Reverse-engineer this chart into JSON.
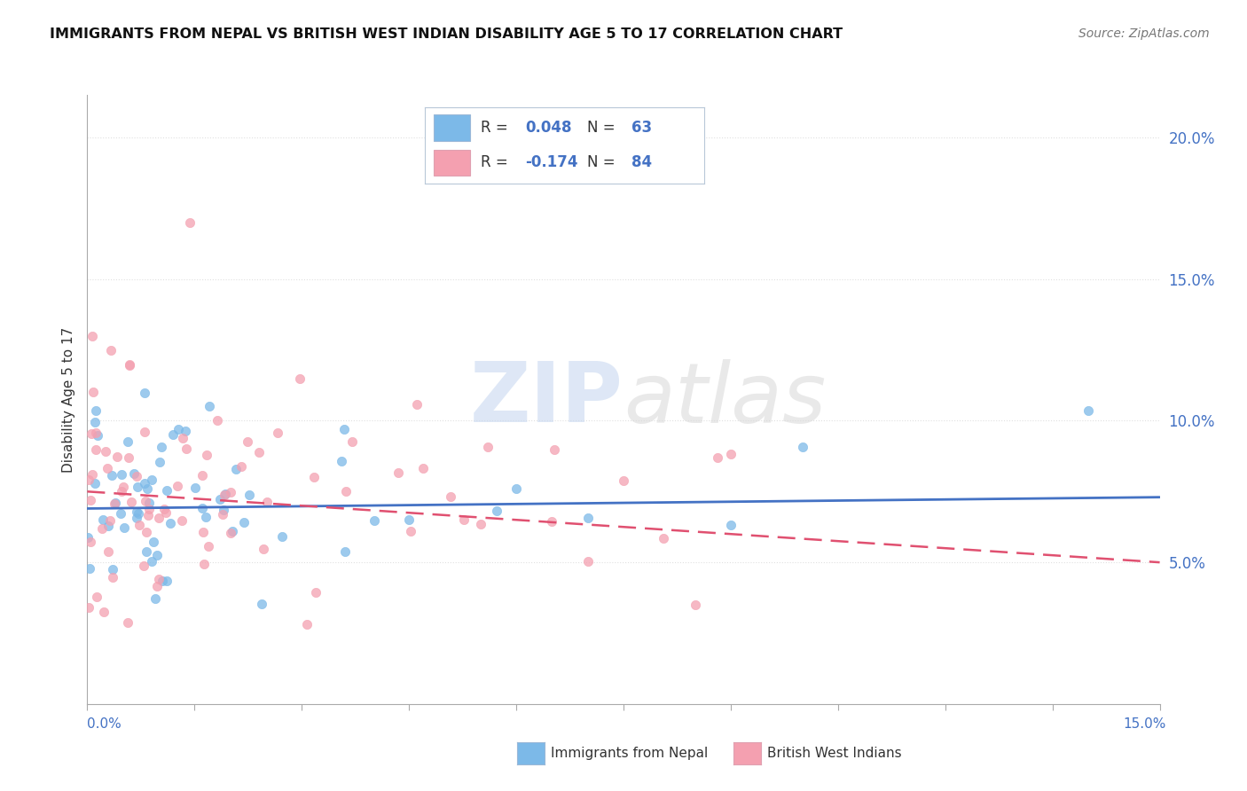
{
  "title": "IMMIGRANTS FROM NEPAL VS BRITISH WEST INDIAN DISABILITY AGE 5 TO 17 CORRELATION CHART",
  "source": "Source: ZipAtlas.com",
  "ylabel": "Disability Age 5 to 17",
  "right_yticks": [
    0.05,
    0.1,
    0.15,
    0.2
  ],
  "right_yticklabels": [
    "5.0%",
    "10.0%",
    "15.0%",
    "20.0%"
  ],
  "xlim": [
    0.0,
    0.15
  ],
  "ylim": [
    0.0,
    0.215
  ],
  "nepal_color": "#7cb9e8",
  "bwi_color": "#f4a0b0",
  "nepal_R": 0.048,
  "nepal_N": 63,
  "bwi_R": -0.174,
  "bwi_N": 84,
  "nepal_line_color": "#4472c4",
  "bwi_line_color": "#e05070",
  "watermark_zip": "ZIP",
  "watermark_atlas": "atlas",
  "background_color": "#ffffff",
  "grid_color": "#e0e0e0",
  "legend_text_color": "#333333",
  "legend_value_color": "#4472c4",
  "nepal_trend_start_y": 0.069,
  "nepal_trend_end_y": 0.073,
  "bwi_trend_start_y": 0.075,
  "bwi_trend_end_y": 0.05
}
